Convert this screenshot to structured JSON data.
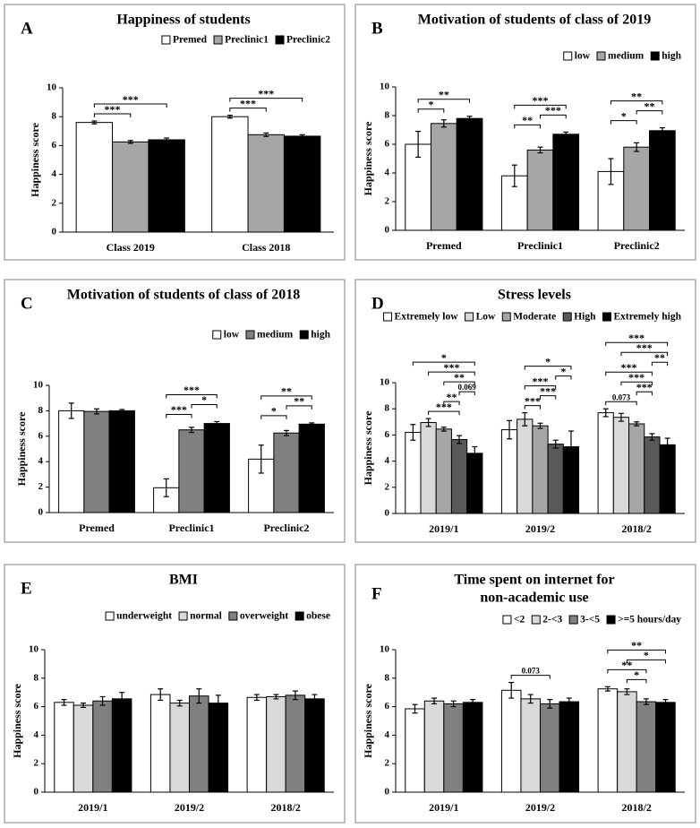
{
  "chart_data": [
    {
      "type": "bar",
      "panel": "A",
      "title": [
        "Happiness of students"
      ],
      "ylabel": "Happiness score",
      "categories": [
        "Class 2019",
        "Class 2018"
      ],
      "series": [
        {
          "name": "Premed",
          "color": "#ffffff",
          "values": [
            7.6,
            8.0
          ],
          "errors": [
            0.1,
            0.1
          ]
        },
        {
          "name": "Preclinic1",
          "color": "#a6a6a6",
          "values": [
            6.25,
            6.75
          ],
          "errors": [
            0.1,
            0.12
          ]
        },
        {
          "name": "Preclinic2",
          "color": "#000000",
          "values": [
            6.4,
            6.65
          ],
          "errors": [
            0.12,
            0.1
          ]
        }
      ],
      "brackets": [
        {
          "category": 0,
          "from": 0,
          "to": 1,
          "label": "***"
        },
        {
          "category": 0,
          "from": 0,
          "to": 2,
          "label": "***"
        },
        {
          "category": 1,
          "from": 0,
          "to": 1,
          "label": "***"
        },
        {
          "category": 1,
          "from": 0,
          "to": 2,
          "label": "***"
        }
      ],
      "ylim": [
        0,
        10
      ],
      "yticks": [
        0,
        2,
        4,
        6,
        8,
        10
      ]
    },
    {
      "type": "bar",
      "panel": "B",
      "title": [
        "Motivation of students of class of 2019"
      ],
      "ylabel": "Happiness score",
      "categories": [
        "Premed",
        "Preclinic1",
        "Preclinic2"
      ],
      "series": [
        {
          "name": "low",
          "color": "#ffffff",
          "values": [
            6.0,
            3.8,
            4.1
          ],
          "errors": [
            0.9,
            0.75,
            0.9
          ]
        },
        {
          "name": "medium",
          "color": "#a6a6a6",
          "values": [
            7.45,
            5.6,
            5.8
          ],
          "errors": [
            0.25,
            0.2,
            0.3
          ]
        },
        {
          "name": "high",
          "color": "#000000",
          "values": [
            7.8,
            6.7,
            6.95
          ],
          "errors": [
            0.15,
            0.15,
            0.2
          ]
        }
      ],
      "brackets": [
        {
          "category": 0,
          "from": 0,
          "to": 1,
          "label": "*"
        },
        {
          "category": 0,
          "from": 0,
          "to": 2,
          "label": "**"
        },
        {
          "category": 1,
          "from": 0,
          "to": 1,
          "label": "**"
        },
        {
          "category": 1,
          "from": 1,
          "to": 2,
          "label": "***"
        },
        {
          "category": 1,
          "from": 0,
          "to": 2,
          "label": "***"
        },
        {
          "category": 2,
          "from": 0,
          "to": 1,
          "label": "*"
        },
        {
          "category": 2,
          "from": 1,
          "to": 2,
          "label": "**"
        },
        {
          "category": 2,
          "from": 0,
          "to": 2,
          "label": "**"
        }
      ],
      "ylim": [
        0,
        10
      ],
      "yticks": [
        0,
        2,
        4,
        6,
        8,
        10
      ]
    },
    {
      "type": "bar",
      "panel": "C",
      "title": [
        "Motivation of students of class of 2018"
      ],
      "ylabel": "Happiness score",
      "categories": [
        "Premed",
        "Preclinic1",
        "Preclinic2"
      ],
      "series": [
        {
          "name": "low",
          "color": "#ffffff",
          "values": [
            8.0,
            1.95,
            4.2
          ],
          "errors": [
            0.6,
            0.7,
            1.1
          ]
        },
        {
          "name": "medium",
          "color": "#808080",
          "values": [
            7.95,
            6.5,
            6.25
          ],
          "errors": [
            0.2,
            0.2,
            0.2
          ]
        },
        {
          "name": "high",
          "color": "#000000",
          "values": [
            8.0,
            7.0,
            6.95
          ],
          "errors": [
            0.1,
            0.15,
            0.1
          ]
        }
      ],
      "brackets": [
        {
          "category": 1,
          "from": 0,
          "to": 1,
          "label": "***"
        },
        {
          "category": 1,
          "from": 1,
          "to": 2,
          "label": "*"
        },
        {
          "category": 1,
          "from": 0,
          "to": 2,
          "label": "***"
        },
        {
          "category": 2,
          "from": 0,
          "to": 1,
          "label": "*"
        },
        {
          "category": 2,
          "from": 1,
          "to": 2,
          "label": "**"
        },
        {
          "category": 2,
          "from": 0,
          "to": 2,
          "label": "**"
        }
      ],
      "ylim": [
        0,
        10
      ],
      "yticks": [
        0,
        2,
        4,
        6,
        8,
        10
      ]
    },
    {
      "type": "bar",
      "panel": "D",
      "title": [
        "Stress levels"
      ],
      "ylabel": "Happiness score",
      "categories": [
        "2019/1",
        "2019/2",
        "2018/2"
      ],
      "series": [
        {
          "name": "Extremely low",
          "color": "#ffffff",
          "values": [
            6.2,
            6.4,
            7.7
          ],
          "errors": [
            0.6,
            0.7,
            0.3
          ]
        },
        {
          "name": "Low",
          "color": "#d9d9d9",
          "values": [
            6.95,
            7.2,
            7.35
          ],
          "errors": [
            0.3,
            0.5,
            0.3
          ]
        },
        {
          "name": "Moderate",
          "color": "#a6a6a6",
          "values": [
            6.45,
            6.7,
            6.85
          ],
          "errors": [
            0.15,
            0.2,
            0.15
          ]
        },
        {
          "name": "High",
          "color": "#595959",
          "values": [
            5.65,
            5.3,
            5.85
          ],
          "errors": [
            0.3,
            0.3,
            0.25
          ]
        },
        {
          "name": "Extremely high",
          "color": "#000000",
          "values": [
            4.6,
            5.1,
            5.25
          ],
          "errors": [
            0.5,
            1.2,
            0.5
          ]
        }
      ],
      "brackets": [
        {
          "category": 0,
          "from": 1,
          "to": 3,
          "label": "***"
        },
        {
          "category": 0,
          "from": 2,
          "to": 3,
          "label": "**"
        },
        {
          "category": 0,
          "from": 3,
          "to": 4,
          "label": "0.069"
        },
        {
          "category": 0,
          "from": 2,
          "to": 4,
          "label": "**"
        },
        {
          "category": 0,
          "from": 1,
          "to": 4,
          "label": "***"
        },
        {
          "category": 0,
          "from": 0,
          "to": 4,
          "label": "*"
        },
        {
          "category": 1,
          "from": 1,
          "to": 2,
          "label": "***"
        },
        {
          "category": 1,
          "from": 2,
          "to": 3,
          "label": "***"
        },
        {
          "category": 1,
          "from": 1,
          "to": 3,
          "label": "***"
        },
        {
          "category": 1,
          "from": 3,
          "to": 4,
          "label": "*"
        },
        {
          "category": 1,
          "from": 1,
          "to": 4,
          "label": "*"
        },
        {
          "category": 2,
          "from": 0,
          "to": 2,
          "label": "0.073"
        },
        {
          "category": 2,
          "from": 2,
          "to": 3,
          "label": "***"
        },
        {
          "category": 2,
          "from": 1,
          "to": 3,
          "label": "***"
        },
        {
          "category": 2,
          "from": 0,
          "to": 3,
          "label": "***"
        },
        {
          "category": 2,
          "from": 3,
          "to": 4,
          "label": "**"
        },
        {
          "category": 2,
          "from": 1,
          "to": 4,
          "label": "***"
        },
        {
          "category": 2,
          "from": 0,
          "to": 4,
          "label": "***"
        }
      ],
      "ylim": [
        0,
        10
      ],
      "yticks": [
        0,
        2,
        4,
        6,
        8,
        10
      ]
    },
    {
      "type": "bar",
      "panel": "E",
      "title": [
        "BMI"
      ],
      "ylabel": "Happiness score",
      "categories": [
        "2019/1",
        "2019/2",
        "2018/2"
      ],
      "series": [
        {
          "name": "underweight",
          "color": "#ffffff",
          "values": [
            6.3,
            6.85,
            6.65
          ],
          "errors": [
            0.2,
            0.4,
            0.2
          ]
        },
        {
          "name": "normal",
          "color": "#d9d9d9",
          "values": [
            6.1,
            6.25,
            6.7
          ],
          "errors": [
            0.15,
            0.2,
            0.15
          ]
        },
        {
          "name": "overweight",
          "color": "#808080",
          "values": [
            6.4,
            6.75,
            6.8
          ],
          "errors": [
            0.3,
            0.5,
            0.3
          ]
        },
        {
          "name": "obese",
          "color": "#000000",
          "values": [
            6.55,
            6.25,
            6.55
          ],
          "errors": [
            0.45,
            0.55,
            0.3
          ]
        }
      ],
      "brackets": [],
      "ylim": [
        0,
        10
      ],
      "yticks": [
        0,
        2,
        4,
        6,
        8,
        10
      ]
    },
    {
      "type": "bar",
      "panel": "F",
      "title": [
        "Time spent on internet for",
        "non-academic use"
      ],
      "ylabel": "Happiness score",
      "categories": [
        "2019/1",
        "2019/2",
        "2018/2"
      ],
      "series": [
        {
          "name": "<2",
          "color": "#ffffff",
          "values": [
            5.85,
            7.15,
            7.25
          ],
          "errors": [
            0.3,
            0.55,
            0.15
          ]
        },
        {
          "name": "2-<3",
          "color": "#d9d9d9",
          "values": [
            6.4,
            6.55,
            7.05
          ],
          "errors": [
            0.2,
            0.3,
            0.2
          ]
        },
        {
          "name": "3-<5",
          "color": "#808080",
          "values": [
            6.2,
            6.2,
            6.35
          ],
          "errors": [
            0.2,
            0.3,
            0.2
          ]
        },
        {
          "name": ">=5 hours/day",
          "color": "#000000",
          "values": [
            6.3,
            6.35,
            6.3
          ],
          "errors": [
            0.2,
            0.25,
            0.2
          ]
        }
      ],
      "brackets": [
        {
          "category": 1,
          "from": 0,
          "to": 2,
          "label": "0.073"
        },
        {
          "category": 2,
          "from": 1,
          "to": 2,
          "label": "*"
        },
        {
          "category": 2,
          "from": 0,
          "to": 2,
          "label": "**"
        },
        {
          "category": 2,
          "from": 1,
          "to": 3,
          "label": "*"
        },
        {
          "category": 2,
          "from": 0,
          "to": 3,
          "label": "**"
        }
      ],
      "ylim": [
        0,
        10
      ],
      "yticks": [
        0,
        2,
        4,
        6,
        8,
        10
      ]
    }
  ]
}
